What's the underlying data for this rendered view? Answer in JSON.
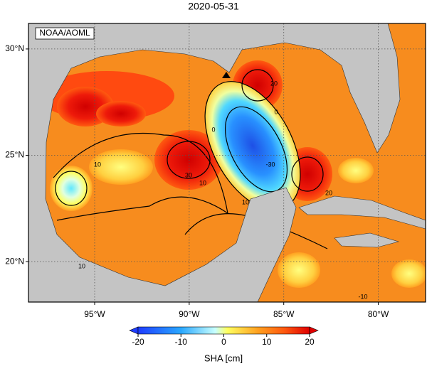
{
  "title": "2020-05-31",
  "credit": "NOAA/AOML",
  "map": {
    "lonlim": [
      -98.5,
      -77.5
    ],
    "latlim": [
      18.1,
      31.2
    ],
    "lon_ticks": [
      {
        "value": -95,
        "label": "95°W"
      },
      {
        "value": -90,
        "label": "90°W"
      },
      {
        "value": -85,
        "label": "85°W"
      },
      {
        "value": -80,
        "label": "80°W"
      }
    ],
    "lat_ticks": [
      {
        "value": 30,
        "label": "30°N"
      },
      {
        "value": 25,
        "label": "25°N"
      },
      {
        "value": 20,
        "label": "20°N"
      }
    ],
    "grid": true,
    "contour_labels": [
      "0",
      "10",
      "20",
      "-30",
      "30",
      "10",
      "20",
      "10",
      "0",
      "10",
      "-10"
    ]
  },
  "colorbar": {
    "label": "SHA [cm]",
    "lim": [
      -22,
      22
    ],
    "ticks": [
      -20,
      -10,
      0,
      10,
      20
    ]
  }
}
